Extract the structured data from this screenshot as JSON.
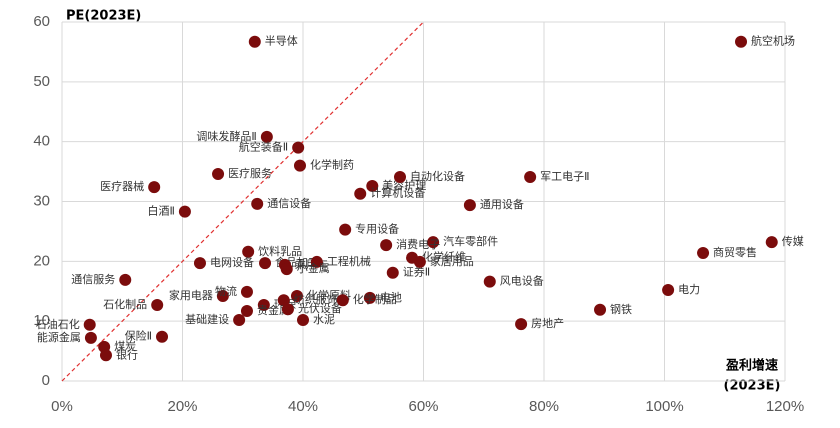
{
  "chart_data": {
    "type": "scatter",
    "ylabel": "PE(2023E)",
    "xlabel": "盈利增速",
    "xlabel_sub": "(2023E)",
    "color": "#7b0c0c",
    "grid": true,
    "xlim": [
      0,
      120
    ],
    "ylim": [
      0,
      60
    ],
    "xticks": [
      {
        "value": 0,
        "label": "0%"
      },
      {
        "value": 20,
        "label": "20%"
      },
      {
        "value": 40,
        "label": "40%"
      },
      {
        "value": 60,
        "label": "60%"
      },
      {
        "value": 80,
        "label": "80%"
      },
      {
        "value": 100,
        "label": "100%"
      },
      {
        "value": 120,
        "label": "120%"
      }
    ],
    "yticks": [
      0,
      10,
      20,
      30,
      40,
      50,
      60
    ],
    "labels": [
      "半导体",
      "航空机场",
      "调味发酵品Ⅱ",
      "航空装备Ⅱ",
      "医疗服务",
      "化学制药",
      "美容护理",
      "自动化设备",
      "军工电子Ⅱ",
      "医疗器械",
      "白酒Ⅱ",
      "通信设备",
      "计算机设备",
      "通用设备",
      "专用设备",
      "传媒",
      "商贸零售",
      "汽车零部件",
      "消费电子",
      "饮料乳品",
      "食品加工",
      "通信服务",
      "电网设备",
      "乘用车",
      "工程机械",
      "证券Ⅱ",
      "化学纤维",
      "家居用品",
      "小金属",
      "风电设备",
      "电力",
      "化学原料",
      "电池",
      "家用电器",
      "石化制品",
      "物流",
      "环保",
      "纺织服饰",
      "基础建设",
      "贵金属",
      "光伏设备",
      "水泥",
      "化学制品",
      "房地产",
      "钢铁",
      "石油石化",
      "能源金属",
      "煤炭",
      "银行",
      "保险Ⅱ"
    ],
    "x": [
      32.0,
      112.7,
      34.0,
      39.2,
      25.9,
      39.5,
      51.5,
      56.1,
      77.7,
      15.3,
      20.4,
      32.4,
      49.5,
      67.7,
      47.0,
      117.8,
      106.4,
      61.6,
      53.8,
      30.9,
      33.7,
      10.5,
      22.9,
      37.0,
      42.3,
      54.9,
      58.1,
      59.4,
      37.3,
      71.0,
      100.6,
      39.0,
      51.1,
      26.7,
      15.8,
      30.7,
      33.5,
      36.8,
      29.4,
      30.7,
      37.5,
      40.0,
      46.6,
      76.2,
      89.3,
      4.6,
      4.8,
      7.0,
      7.3,
      16.6
    ],
    "values": [
      56.7,
      56.7,
      40.8,
      39.0,
      34.6,
      36.0,
      32.6,
      34.1,
      34.1,
      32.4,
      28.3,
      29.6,
      31.3,
      29.4,
      25.3,
      23.2,
      21.4,
      23.2,
      22.7,
      21.6,
      19.7,
      16.9,
      19.7,
      19.4,
      19.9,
      18.1,
      20.6,
      19.9,
      18.7,
      16.6,
      15.2,
      14.2,
      13.9,
      14.2,
      12.7,
      14.9,
      12.7,
      13.5,
      10.2,
      11.7,
      12.0,
      10.2,
      13.5,
      9.5,
      11.9,
      9.4,
      7.2,
      5.7,
      4.3,
      7.4
    ]
  }
}
